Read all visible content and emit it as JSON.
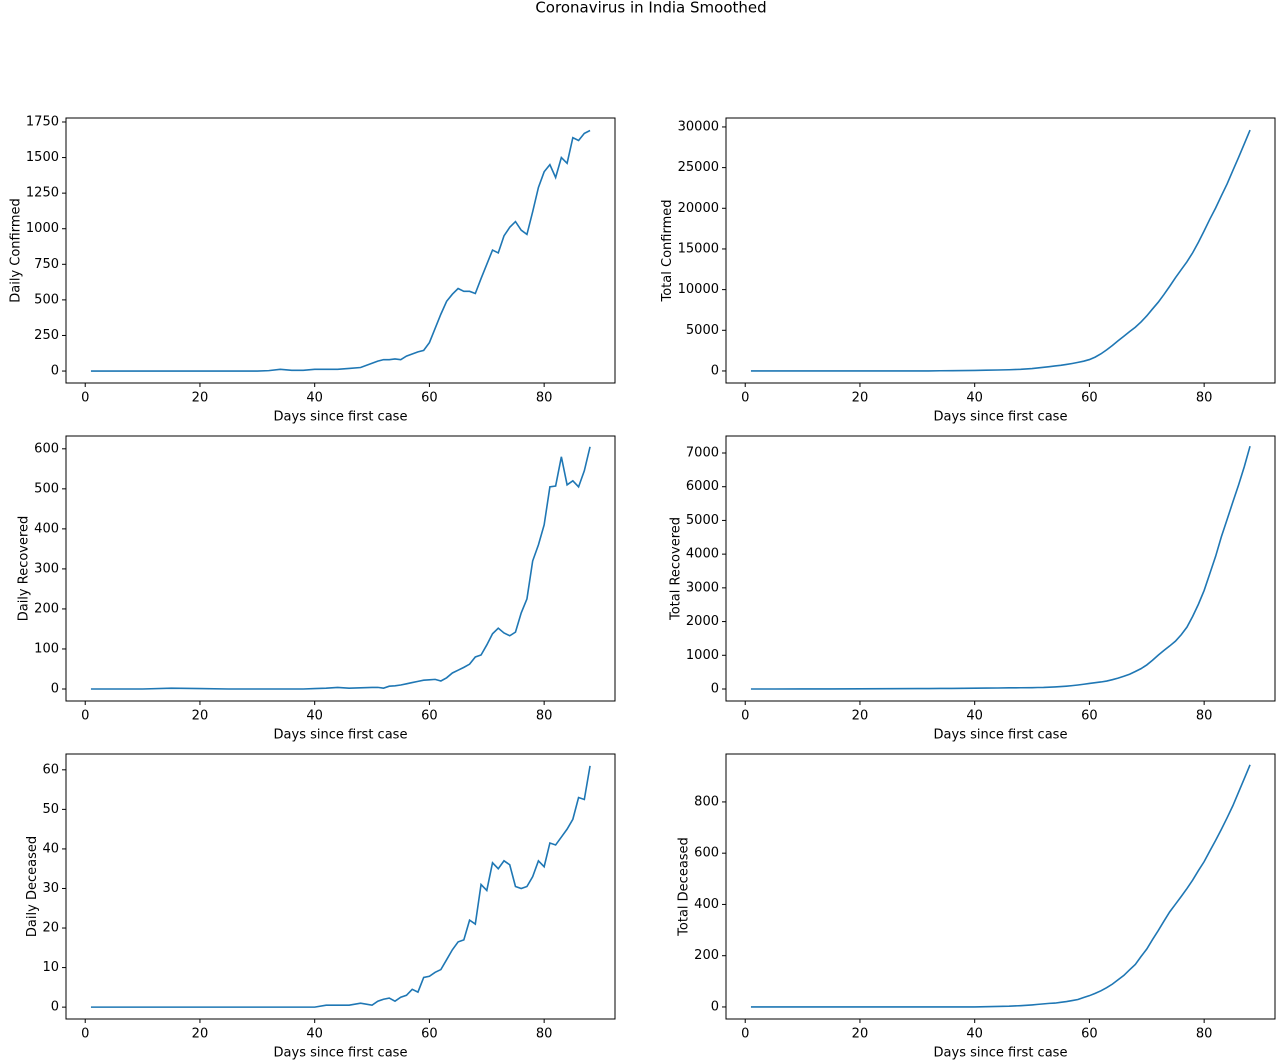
{
  "title": "Coronavirus in India Smoothed",
  "chart_data": [
    {
      "type": "line",
      "ylabel": "Daily Confirmed",
      "xlabel": "Days since first case",
      "color": "#1f77b4",
      "x": [
        1,
        5,
        10,
        15,
        20,
        25,
        30,
        32,
        34,
        36,
        38,
        40,
        42,
        44,
        46,
        48,
        50,
        51,
        52,
        53,
        54,
        55,
        56,
        57,
        58,
        59,
        60,
        61,
        62,
        63,
        64,
        65,
        66,
        67,
        68,
        69,
        70,
        71,
        72,
        73,
        74,
        75,
        76,
        77,
        78,
        79,
        80,
        81,
        82,
        83,
        84,
        85,
        86,
        87,
        88
      ],
      "values": [
        0,
        0,
        0,
        0,
        0,
        0,
        0,
        3,
        12,
        5,
        5,
        12,
        12,
        12,
        18,
        25,
        55,
        70,
        80,
        80,
        85,
        80,
        105,
        120,
        135,
        145,
        200,
        300,
        400,
        490,
        540,
        580,
        560,
        560,
        545,
        650,
        750,
        850,
        830,
        950,
        1010,
        1050,
        990,
        960,
        1120,
        1290,
        1400,
        1450,
        1360,
        1500,
        1460,
        1640,
        1620,
        1670,
        1690
      ],
      "xlim": [
        -3.35,
        92.35
      ],
      "ylim": [
        -84,
        1778
      ],
      "xticks": [
        0,
        20,
        40,
        60,
        80
      ],
      "yticks": [
        0,
        250,
        500,
        750,
        1000,
        1250,
        1500,
        1750
      ]
    },
    {
      "type": "line",
      "ylabel": "Total Confirmed",
      "xlabel": "Days since first case",
      "color": "#1f77b4",
      "x": [
        1,
        5,
        10,
        15,
        20,
        25,
        30,
        32,
        34,
        36,
        38,
        40,
        42,
        44,
        46,
        48,
        50,
        51,
        52,
        53,
        54,
        55,
        56,
        57,
        58,
        59,
        60,
        61,
        62,
        63,
        64,
        65,
        66,
        67,
        68,
        69,
        70,
        71,
        72,
        73,
        74,
        75,
        76,
        77,
        78,
        79,
        80,
        81,
        82,
        83,
        84,
        85,
        86,
        87,
        88
      ],
      "values": [
        1,
        3,
        3,
        3,
        3,
        3,
        3,
        5,
        25,
        40,
        50,
        70,
        95,
        120,
        150,
        200,
        300,
        370,
        450,
        530,
        615,
        695,
        800,
        920,
        1055,
        1200,
        1400,
        1700,
        2100,
        2590,
        3130,
        3710,
        4270,
        4830,
        5375,
        6025,
        6775,
        7625,
        8455,
        9405,
        10415,
        11465,
        12455,
        13415,
        14535,
        15825,
        17225,
        18675,
        20035,
        21535,
        22995,
        24635,
        26255,
        27925,
        29615
      ],
      "xlim": [
        -3.35,
        92.35
      ],
      "ylim": [
        -1480,
        31100
      ],
      "xticks": [
        0,
        20,
        40,
        60,
        80
      ],
      "yticks": [
        0,
        5000,
        10000,
        15000,
        20000,
        25000,
        30000
      ]
    },
    {
      "type": "line",
      "ylabel": "Daily Recovered",
      "xlabel": "Days since first case",
      "color": "#1f77b4",
      "x": [
        1,
        5,
        10,
        15,
        20,
        25,
        30,
        32,
        34,
        36,
        38,
        40,
        42,
        44,
        46,
        48,
        50,
        51,
        52,
        53,
        54,
        55,
        56,
        57,
        58,
        59,
        60,
        61,
        62,
        63,
        64,
        65,
        66,
        67,
        68,
        69,
        70,
        71,
        72,
        73,
        74,
        75,
        76,
        77,
        78,
        79,
        80,
        81,
        82,
        83,
        84,
        85,
        86,
        87,
        88
      ],
      "values": [
        0,
        0,
        0,
        2,
        1,
        0,
        0,
        0,
        0,
        0,
        0,
        1,
        2,
        4,
        2,
        3,
        4,
        4,
        2,
        7,
        8,
        10,
        13,
        16,
        19,
        22,
        23,
        24,
        20,
        28,
        40,
        47,
        54,
        62,
        80,
        85,
        110,
        138,
        152,
        140,
        133,
        142,
        190,
        225,
        320,
        360,
        410,
        505,
        507,
        580,
        510,
        520,
        505,
        545,
        605
      ],
      "xlim": [
        -3.35,
        92.35
      ],
      "ylim": [
        -30,
        632
      ],
      "xticks": [
        0,
        20,
        40,
        60,
        80
      ],
      "yticks": [
        0,
        100,
        200,
        300,
        400,
        500,
        600
      ]
    },
    {
      "type": "line",
      "ylabel": "Total Recovered",
      "xlabel": "Days since first case",
      "color": "#1f77b4",
      "x": [
        1,
        5,
        10,
        15,
        20,
        25,
        30,
        32,
        34,
        36,
        38,
        40,
        42,
        44,
        46,
        48,
        50,
        51,
        52,
        53,
        54,
        55,
        56,
        57,
        58,
        59,
        60,
        61,
        62,
        63,
        64,
        65,
        66,
        67,
        68,
        69,
        70,
        71,
        72,
        73,
        74,
        75,
        76,
        77,
        78,
        79,
        80,
        81,
        82,
        83,
        84,
        85,
        86,
        87,
        88
      ],
      "values": [
        0,
        0,
        1,
        3,
        5,
        8,
        12,
        14,
        16,
        18,
        20,
        25,
        27,
        30,
        34,
        37,
        40,
        44,
        46,
        53,
        61,
        71,
        84,
        100,
        119,
        141,
        164,
        188,
        208,
        236,
        276,
        323,
        377,
        439,
        519,
        604,
        714,
        852,
        1004,
        1144,
        1277,
        1419,
        1609,
        1834,
        2154,
        2514,
        2924,
        3429,
        3936,
        4516,
        5026,
        5546,
        6051,
        6596,
        7201
      ],
      "xlim": [
        -3.35,
        92.35
      ],
      "ylim": [
        -356,
        7504
      ],
      "xticks": [
        0,
        20,
        40,
        60,
        80
      ],
      "yticks": [
        0,
        1000,
        2000,
        3000,
        4000,
        5000,
        6000,
        7000
      ]
    },
    {
      "type": "line",
      "ylabel": "Daily Deceased",
      "xlabel": "Days since first case",
      "color": "#1f77b4",
      "x": [
        1,
        5,
        10,
        15,
        20,
        25,
        30,
        32,
        34,
        36,
        38,
        40,
        42,
        44,
        46,
        48,
        50,
        51,
        52,
        53,
        54,
        55,
        56,
        57,
        58,
        59,
        60,
        61,
        62,
        63,
        64,
        65,
        66,
        67,
        68,
        69,
        70,
        71,
        72,
        73,
        74,
        75,
        76,
        77,
        78,
        79,
        80,
        81,
        82,
        83,
        84,
        85,
        86,
        87,
        88
      ],
      "values": [
        0,
        0,
        0,
        0,
        0,
        0,
        0,
        0,
        0,
        0,
        0,
        0,
        0.5,
        0.5,
        0.5,
        1,
        0.5,
        1.5,
        2,
        2.3,
        1.5,
        2.5,
        3,
        4.5,
        3.8,
        7.5,
        7.8,
        8.8,
        9.5,
        12,
        14.5,
        16.5,
        17,
        22,
        21,
        31,
        29.5,
        36.5,
        35,
        37,
        36,
        30.5,
        30,
        30.5,
        33,
        37,
        35.5,
        41.5,
        41,
        43,
        45,
        47.5,
        53,
        52.5,
        61
      ],
      "xlim": [
        -3.35,
        92.35
      ],
      "ylim": [
        -3,
        64
      ],
      "xticks": [
        0,
        20,
        40,
        60,
        80
      ],
      "yticks": [
        0,
        10,
        20,
        30,
        40,
        50,
        60
      ]
    },
    {
      "type": "line",
      "ylabel": "Total Deceased",
      "xlabel": "Days since first case",
      "color": "#1f77b4",
      "x": [
        1,
        5,
        10,
        15,
        20,
        25,
        30,
        32,
        34,
        36,
        38,
        40,
        42,
        44,
        46,
        48,
        50,
        51,
        52,
        53,
        54,
        55,
        56,
        57,
        58,
        59,
        60,
        61,
        62,
        63,
        64,
        65,
        66,
        67,
        68,
        69,
        70,
        71,
        72,
        73,
        74,
        75,
        76,
        77,
        78,
        79,
        80,
        81,
        82,
        83,
        84,
        85,
        86,
        87,
        88
      ],
      "values": [
        0,
        0,
        0,
        0,
        0,
        0,
        0,
        0,
        0,
        0,
        0,
        0,
        1,
        2,
        3,
        5,
        8,
        10,
        12,
        14,
        15,
        18,
        21,
        25,
        29,
        37,
        44,
        53,
        63,
        75,
        89,
        106,
        123,
        145,
        166,
        197,
        226,
        263,
        298,
        335,
        371,
        401,
        431,
        462,
        495,
        532,
        567,
        609,
        650,
        693,
        738,
        785,
        838,
        891,
        945
      ],
      "xlim": [
        -3.35,
        92.35
      ],
      "ylim": [
        -47,
        987
      ],
      "xticks": [
        0,
        20,
        40,
        60,
        80
      ],
      "yticks": [
        0,
        200,
        400,
        600,
        800
      ]
    }
  ]
}
